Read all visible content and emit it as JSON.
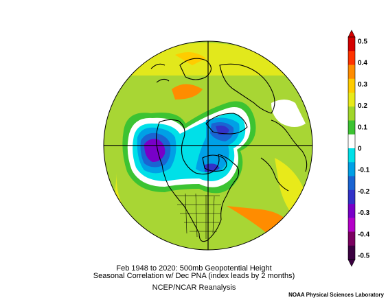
{
  "caption": {
    "line1": "Feb 1948 to 2020: 500mb Geopotential Height",
    "line2": "Seasonal Correlation w/ Dec PNA (index leads by 2 months)",
    "line3": "NCEP/NCAR Reanalysis",
    "credit": "NOAA Physical Sciences Laboratory"
  },
  "colorbar": {
    "labels": [
      "0.5",
      "0.4",
      "0.3",
      "0.2",
      "0.1",
      "0",
      "-0.1",
      "-0.2",
      "-0.3",
      "-0.4",
      "-0.5"
    ],
    "colors": [
      "#d40000",
      "#ff3300",
      "#ff8c00",
      "#ffcc00",
      "#e8ea1a",
      "#a0d62a",
      "#3cc332",
      "#ffffff",
      "#00e0e8",
      "#00a0e6",
      "#1a64d2",
      "#3232c8",
      "#7800c8",
      "#b400c8",
      "#7a0060",
      "#3a0040"
    ]
  },
  "map": {
    "projection": "north-polar-stereographic",
    "field": "correlation",
    "colors": {
      "background": "#a8d634",
      "high_orange": "#ff8c00",
      "yellow": "#e8ea1a",
      "negative_blue": "#1a64d2",
      "negative_purple": "#7800c8",
      "cyan": "#00e0e8"
    }
  }
}
